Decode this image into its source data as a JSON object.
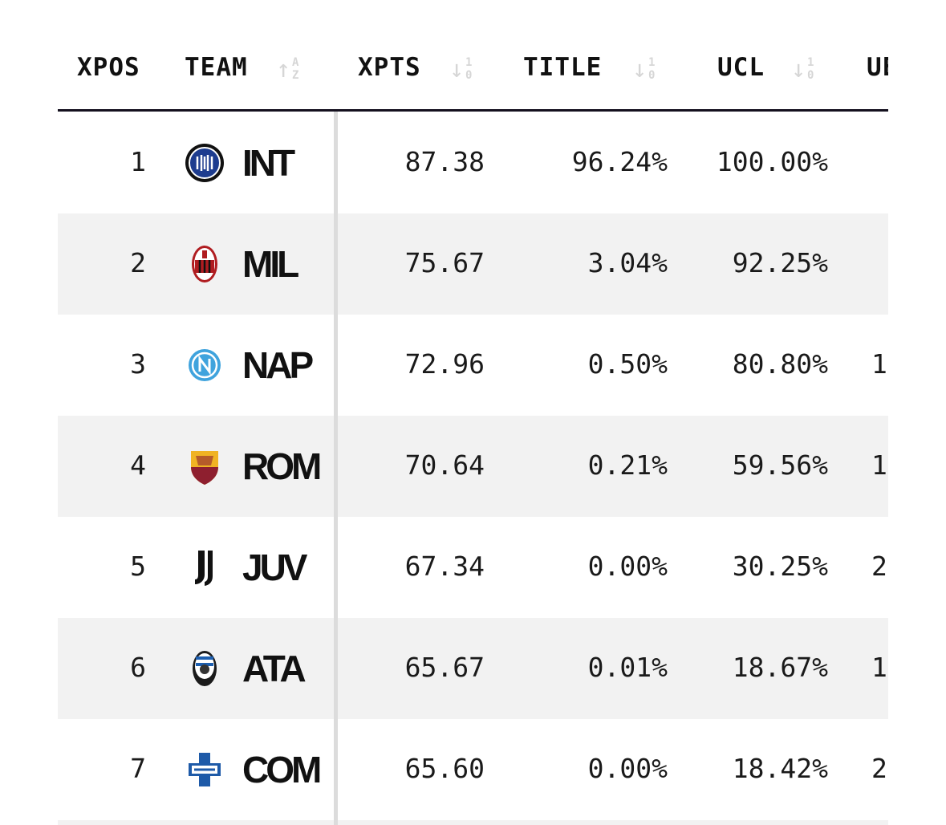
{
  "headers": {
    "xpos": "XPOS",
    "team": "TEAM",
    "xpts": "XPTS",
    "title": "TITLE",
    "ucl": "UCL",
    "uel": "UE"
  },
  "sort_icons": {
    "team": "sort-alpha-up-icon",
    "numeric": "sort-numeric-down-icon"
  },
  "rows": [
    {
      "xpos": "1",
      "team": "INT",
      "logo": "inter-crest-icon",
      "xpts": "87.38",
      "title": "96.24%",
      "ucl": "100.00%",
      "uel": ""
    },
    {
      "xpos": "2",
      "team": "MIL",
      "logo": "milan-crest-icon",
      "xpts": "75.67",
      "title": "3.04%",
      "ucl": "92.25%",
      "uel": ""
    },
    {
      "xpos": "3",
      "team": "NAP",
      "logo": "napoli-crest-icon",
      "xpts": "72.96",
      "title": "0.50%",
      "ucl": "80.80%",
      "uel": "1"
    },
    {
      "xpos": "4",
      "team": "ROM",
      "logo": "roma-crest-icon",
      "xpts": "70.64",
      "title": "0.21%",
      "ucl": "59.56%",
      "uel": "1"
    },
    {
      "xpos": "5",
      "team": "JUV",
      "logo": "juventus-crest-icon",
      "xpts": "67.34",
      "title": "0.00%",
      "ucl": "30.25%",
      "uel": "2"
    },
    {
      "xpos": "6",
      "team": "ATA",
      "logo": "atalanta-crest-icon",
      "xpts": "65.67",
      "title": "0.01%",
      "ucl": "18.67%",
      "uel": "1"
    },
    {
      "xpos": "7",
      "team": "COM",
      "logo": "como-crest-icon",
      "xpts": "65.60",
      "title": "0.00%",
      "ucl": "18.42%",
      "uel": "2"
    }
  ]
}
